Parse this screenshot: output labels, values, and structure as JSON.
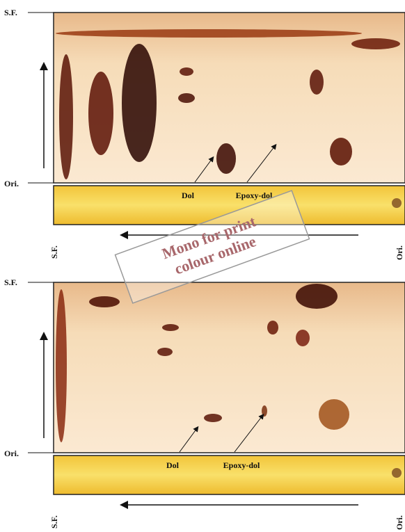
{
  "panels": [
    {
      "top_sf": "S.F.",
      "top_ori": "Ori.",
      "dol": "Dol",
      "epoxy": "Epoxy-dol",
      "bottom_sf": "S.F.",
      "bottom_ori": "Ori."
    },
    {
      "top_sf": "S.F.",
      "top_ori": "Ori.",
      "dol": "Dol",
      "epoxy": "Epoxy-dol",
      "bottom_sf": "S.F.",
      "bottom_ori": "Ori."
    }
  ],
  "watermark": {
    "line1": "Mono for print",
    "line2": "colour online"
  }
}
